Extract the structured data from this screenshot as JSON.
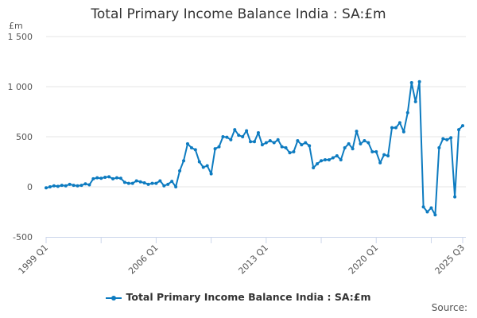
{
  "header": {
    "title": "Total Primary Income Balance India : SA:£m"
  },
  "axis": {
    "unit_label": "£m"
  },
  "legend": {
    "label": "Total Primary Income Balance India : SA:£m"
  },
  "footer": {
    "source_label": "Source:"
  },
  "colors": {
    "series": "#0d7bc0",
    "grid": "#e6e6e6",
    "axis": "#ccd6eb"
  },
  "chart_data": {
    "type": "line",
    "title": "Total Primary Income Balance India : SA:£m",
    "xlabel": "",
    "ylabel": "£m",
    "ylim": [
      -500,
      1500
    ],
    "yticks": [
      "-500",
      "0",
      "500",
      "1 000",
      "1 500"
    ],
    "xticks": [
      "1999 Q1",
      "2006 Q1",
      "2013 Q1",
      "2020 Q1",
      "2025 Q3"
    ],
    "grid": true,
    "legend_position": "bottom",
    "x_start": "1999 Q1",
    "x_end": "2025 Q3",
    "frequency": "quarterly",
    "series": [
      {
        "name": "Total Primary Income Balance India : SA:£m",
        "values": [
          -10,
          0,
          10,
          5,
          15,
          10,
          25,
          15,
          10,
          15,
          30,
          20,
          80,
          90,
          85,
          95,
          100,
          80,
          90,
          85,
          45,
          35,
          35,
          60,
          50,
          40,
          25,
          35,
          35,
          60,
          10,
          25,
          55,
          0,
          160,
          260,
          430,
          390,
          370,
          250,
          195,
          210,
          130,
          380,
          400,
          500,
          495,
          470,
          570,
          515,
          500,
          560,
          450,
          450,
          540,
          420,
          440,
          460,
          440,
          470,
          400,
          390,
          340,
          350,
          460,
          420,
          440,
          410,
          190,
          230,
          260,
          270,
          270,
          290,
          310,
          270,
          390,
          430,
          380,
          555,
          430,
          460,
          440,
          350,
          350,
          240,
          320,
          310,
          590,
          590,
          640,
          550,
          740,
          1040,
          850,
          1050,
          -200,
          -250,
          -210,
          -280,
          390,
          480,
          470,
          490,
          -100,
          570,
          610
        ]
      }
    ]
  }
}
